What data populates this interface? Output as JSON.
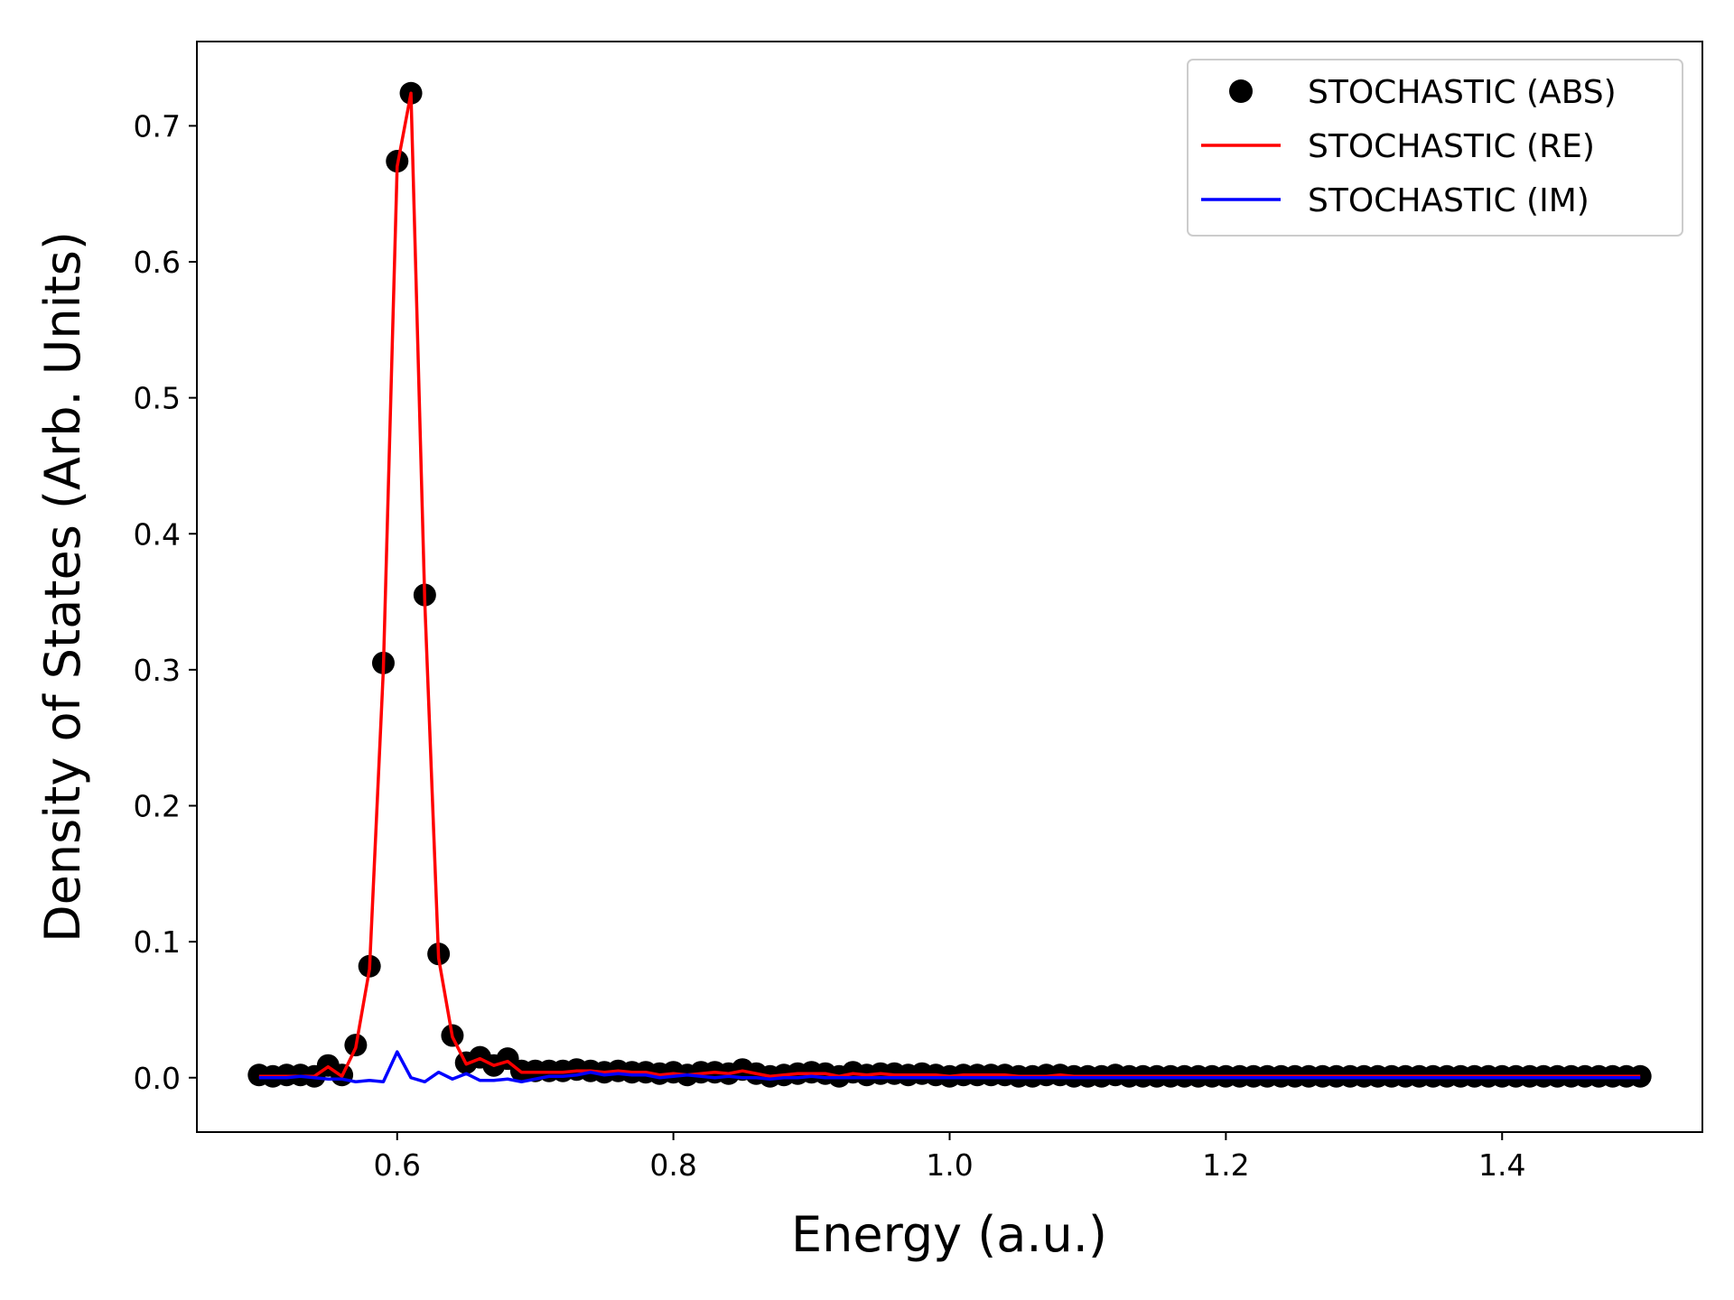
{
  "chart_data": {
    "type": "line",
    "xlabel": "Energy (a.u.)",
    "ylabel": "Density of States (Arb. Units)",
    "xlim": [
      0.455,
      1.545
    ],
    "ylim": [
      -0.04,
      0.762
    ],
    "xticks": [
      0.6,
      0.8,
      1.0,
      1.2,
      1.4
    ],
    "xtick_labels": [
      "0.6",
      "0.8",
      "1.0",
      "1.2",
      "1.4"
    ],
    "yticks": [
      0.0,
      0.1,
      0.2,
      0.3,
      0.4,
      0.5,
      0.6,
      0.7
    ],
    "ytick_labels": [
      "0.0",
      "0.1",
      "0.2",
      "0.3",
      "0.4",
      "0.5",
      "0.6",
      "0.7"
    ],
    "grid": false,
    "legend_position": "top-right",
    "x": [
      0.5,
      0.51,
      0.52,
      0.53,
      0.54,
      0.55,
      0.56,
      0.57,
      0.58,
      0.59,
      0.6,
      0.61,
      0.62,
      0.63,
      0.64,
      0.65,
      0.66,
      0.67,
      0.68,
      0.69,
      0.7,
      0.71,
      0.72,
      0.73,
      0.74,
      0.75,
      0.76,
      0.77,
      0.78,
      0.79,
      0.8,
      0.81,
      0.82,
      0.83,
      0.84,
      0.85,
      0.86,
      0.87,
      0.88,
      0.89,
      0.9,
      0.91,
      0.92,
      0.93,
      0.94,
      0.95,
      0.96,
      0.97,
      0.98,
      0.99,
      1.0,
      1.01,
      1.02,
      1.03,
      1.04,
      1.05,
      1.06,
      1.07,
      1.08,
      1.09,
      1.1,
      1.11,
      1.12,
      1.13,
      1.14,
      1.15,
      1.16,
      1.17,
      1.18,
      1.19,
      1.2,
      1.21,
      1.22,
      1.23,
      1.24,
      1.25,
      1.26,
      1.27,
      1.28,
      1.29,
      1.3,
      1.31,
      1.32,
      1.33,
      1.34,
      1.35,
      1.36,
      1.37,
      1.38,
      1.39,
      1.4,
      1.41,
      1.42,
      1.43,
      1.44,
      1.45,
      1.46,
      1.47,
      1.48,
      1.49,
      1.5
    ],
    "series": [
      {
        "name": "STOCHASTIC (ABS)",
        "style": "markers",
        "color": "#000000",
        "values": [
          0.002,
          0.001,
          0.002,
          0.002,
          0.001,
          0.009,
          0.002,
          0.024,
          0.082,
          0.305,
          0.674,
          0.724,
          0.355,
          0.091,
          0.031,
          0.011,
          0.015,
          0.009,
          0.014,
          0.005,
          0.005,
          0.005,
          0.005,
          0.006,
          0.005,
          0.004,
          0.005,
          0.004,
          0.004,
          0.003,
          0.004,
          0.002,
          0.004,
          0.004,
          0.003,
          0.006,
          0.003,
          0.001,
          0.002,
          0.003,
          0.004,
          0.003,
          0.001,
          0.004,
          0.002,
          0.003,
          0.003,
          0.002,
          0.003,
          0.002,
          0.001,
          0.002,
          0.002,
          0.002,
          0.002,
          0.001,
          0.001,
          0.002,
          0.002,
          0.001,
          0.001,
          0.001,
          0.002,
          0.001,
          0.001,
          0.001,
          0.001,
          0.001,
          0.001,
          0.001,
          0.001,
          0.001,
          0.001,
          0.001,
          0.001,
          0.001,
          0.001,
          0.001,
          0.001,
          0.001,
          0.001,
          0.001,
          0.001,
          0.001,
          0.001,
          0.001,
          0.001,
          0.001,
          0.001,
          0.001,
          0.001,
          0.001,
          0.001,
          0.001,
          0.001,
          0.001,
          0.001,
          0.001,
          0.001,
          0.001,
          0.001
        ]
      },
      {
        "name": "STOCHASTIC (RE)",
        "style": "line",
        "color": "#ff0000",
        "values": [
          0.001,
          0.001,
          0.001,
          0.001,
          0.001,
          0.008,
          0.001,
          0.022,
          0.08,
          0.3,
          0.67,
          0.724,
          0.35,
          0.088,
          0.03,
          0.01,
          0.014,
          0.009,
          0.012,
          0.004,
          0.004,
          0.004,
          0.004,
          0.005,
          0.005,
          0.004,
          0.005,
          0.004,
          0.004,
          0.002,
          0.003,
          0.002,
          0.003,
          0.004,
          0.003,
          0.005,
          0.003,
          0.001,
          0.002,
          0.003,
          0.003,
          0.003,
          0.001,
          0.003,
          0.002,
          0.003,
          0.002,
          0.002,
          0.002,
          0.002,
          0.001,
          0.002,
          0.002,
          0.002,
          0.002,
          0.001,
          0.001,
          0.001,
          0.002,
          0.001,
          0.001,
          0.001,
          0.001,
          0.001,
          0.001,
          0.001,
          0.001,
          0.001,
          0.001,
          0.001,
          0.001,
          0.001,
          0.001,
          0.001,
          0.001,
          0.001,
          0.001,
          0.001,
          0.001,
          0.001,
          0.001,
          0.001,
          0.001,
          0.001,
          0.001,
          0.001,
          0.001,
          0.001,
          0.001,
          0.001,
          0.001,
          0.001,
          0.001,
          0.001,
          0.001,
          0.001,
          0.001,
          0.001,
          0.001,
          0.001,
          0.001
        ]
      },
      {
        "name": "STOCHASTIC (IM)",
        "style": "line",
        "color": "#0000ff",
        "values": [
          0.0,
          0.0,
          0.0,
          0.001,
          0.0,
          -0.001,
          -0.001,
          -0.003,
          -0.002,
          -0.003,
          0.019,
          0.0,
          -0.003,
          0.004,
          -0.001,
          0.003,
          -0.002,
          -0.002,
          -0.001,
          -0.003,
          -0.001,
          0.001,
          0.001,
          0.002,
          0.004,
          0.002,
          0.003,
          0.002,
          0.002,
          0.0,
          0.001,
          0.002,
          0.001,
          0.0,
          0.001,
          0.0,
          0.0,
          -0.001,
          0.0,
          0.0,
          0.001,
          0.0,
          0.0,
          0.0,
          0.0,
          0.0,
          0.0,
          0.0,
          0.0,
          0.0,
          0.0,
          0.0,
          0.0,
          0.0,
          0.0,
          0.0,
          0.0,
          0.0,
          0.0,
          0.0,
          0.0,
          0.0,
          0.0,
          0.0,
          0.0,
          0.0,
          0.0,
          0.0,
          0.0,
          0.0,
          0.0,
          0.0,
          0.0,
          0.0,
          0.0,
          0.0,
          0.0,
          0.0,
          0.0,
          0.0,
          0.0,
          0.0,
          0.0,
          0.0,
          0.0,
          0.0,
          0.0,
          0.0,
          0.0,
          0.0,
          0.0,
          0.0,
          0.0,
          0.0,
          0.0,
          0.0,
          0.0,
          0.0,
          0.0,
          0.0,
          0.0
        ]
      }
    ]
  }
}
